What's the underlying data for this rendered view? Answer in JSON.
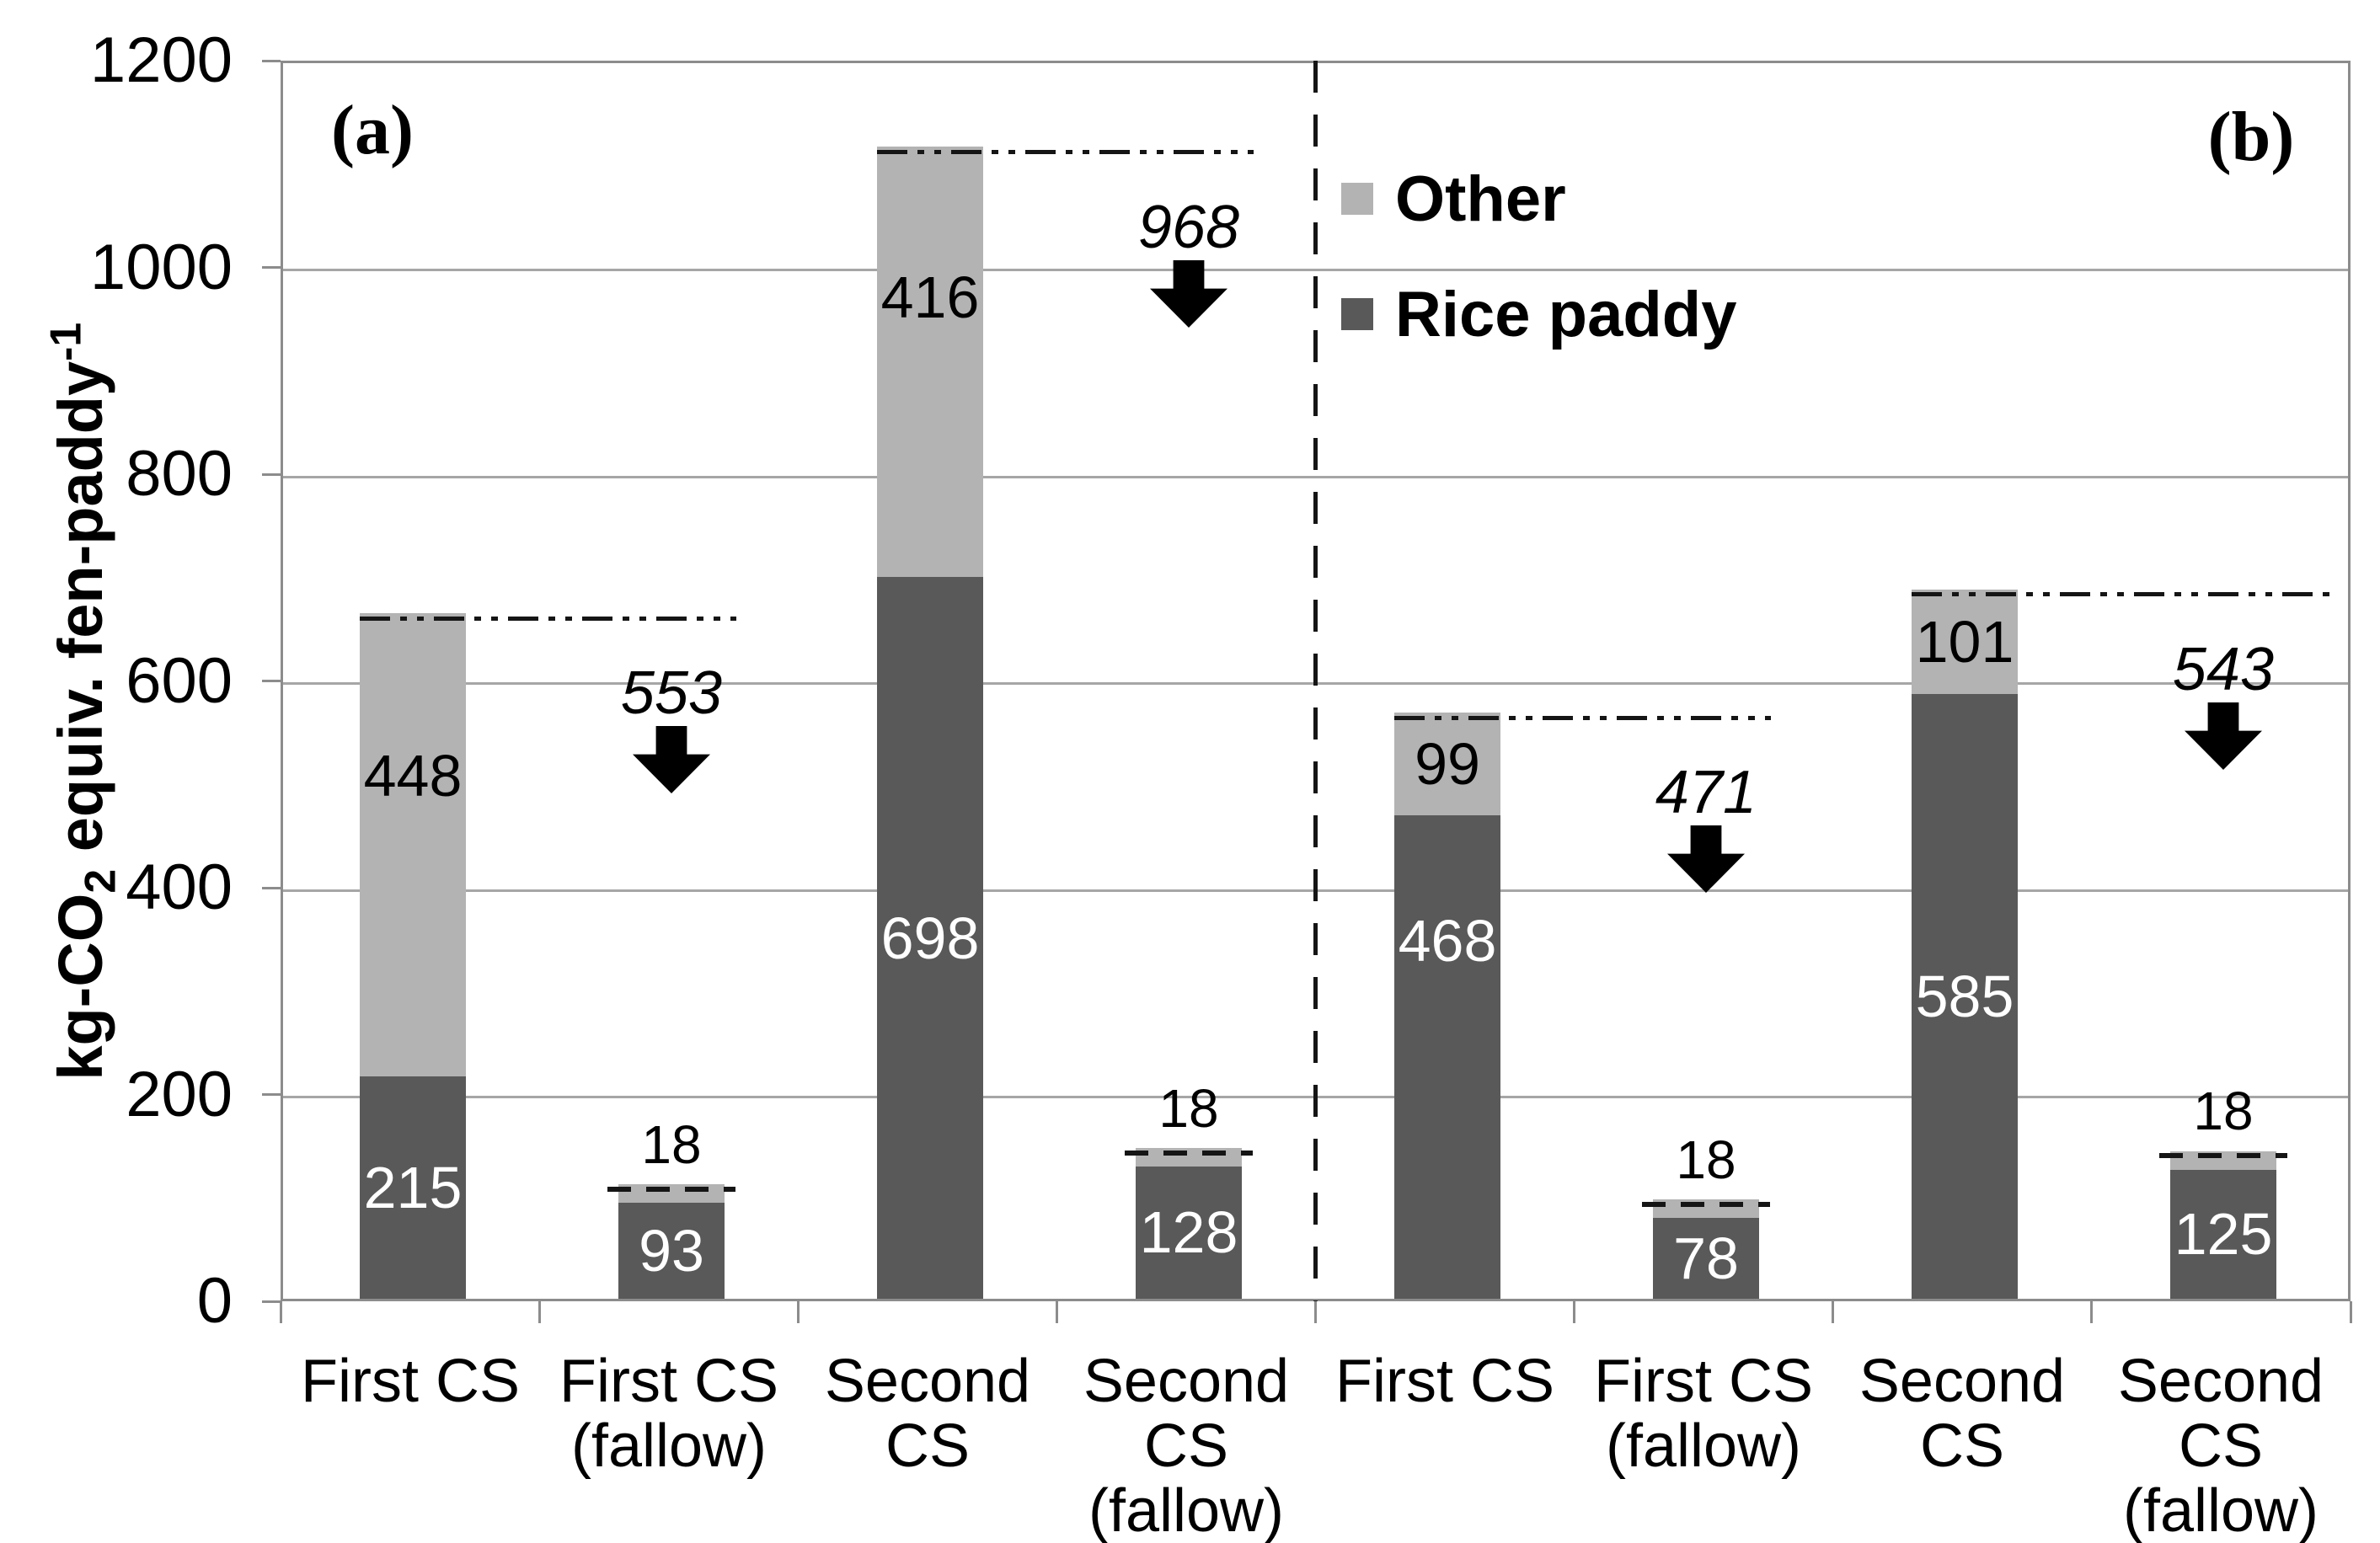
{
  "figure": {
    "y_axis_title": {
      "prefix": "kg-CO",
      "sub": "2",
      "mid": " equiv. fen-paddy",
      "sup": "-1"
    }
  },
  "chart_data": {
    "type": "bar",
    "stacked": true,
    "title": "",
    "ylabel": "kg-CO2 equiv. fen-paddy-1",
    "ylim": [
      0,
      1200
    ],
    "yticks": [
      0,
      200,
      400,
      600,
      800,
      1000,
      1200
    ],
    "grid": true,
    "legend_position": "top-center-right",
    "series": [
      {
        "name": "Rice paddy",
        "color": "#595959"
      },
      {
        "name": "Other",
        "color": "#b3b3b3"
      }
    ],
    "panels": [
      {
        "label": "(a)",
        "bars": [
          {
            "category": "First CS",
            "category_lines": [
              "First CS"
            ],
            "rice_paddy": 215,
            "other": 448,
            "rice_label": "215",
            "other_label": "448",
            "kind": "full"
          },
          {
            "category": "First CS (fallow)",
            "category_lines": [
              "First CS",
              "(fallow)"
            ],
            "rice_paddy": 93,
            "other": 18,
            "rice_label": "93",
            "top_label": "18",
            "kind": "fallow"
          },
          {
            "category": "Second CS",
            "category_lines": [
              "Second",
              "CS"
            ],
            "rice_paddy": 698,
            "other": 416,
            "rice_label": "698",
            "other_label": "416",
            "kind": "full"
          },
          {
            "category": "Second CS (fallow)",
            "category_lines": [
              "Second",
              "CS",
              "(fallow)"
            ],
            "rice_paddy": 128,
            "other": 18,
            "rice_label": "128",
            "top_label": "18",
            "kind": "fallow"
          }
        ],
        "reduction_annotations": [
          {
            "text": "553",
            "fallow_index": 1,
            "ref_index": 0
          },
          {
            "text": "968",
            "fallow_index": 3,
            "ref_index": 2
          }
        ]
      },
      {
        "label": "(b)",
        "bars": [
          {
            "category": "First CS",
            "category_lines": [
              "First CS"
            ],
            "rice_paddy": 468,
            "other": 99,
            "rice_label": "468",
            "other_label": "99",
            "kind": "full"
          },
          {
            "category": "First CS (fallow)",
            "category_lines": [
              "First CS",
              "(fallow)"
            ],
            "rice_paddy": 78,
            "other": 18,
            "rice_label": "78",
            "top_label": "18",
            "kind": "fallow"
          },
          {
            "category": "Second CS",
            "category_lines": [
              "Second",
              "CS"
            ],
            "rice_paddy": 585,
            "other": 101,
            "rice_label": "585",
            "other_label": "101",
            "kind": "full"
          },
          {
            "category": "Second CS (fallow)",
            "category_lines": [
              "Second",
              "CS",
              "(fallow)"
            ],
            "rice_paddy": 125,
            "other": 18,
            "rice_label": "125",
            "top_label": "18",
            "kind": "fallow"
          }
        ],
        "reduction_annotations": [
          {
            "text": "471",
            "fallow_index": 1,
            "ref_index": 0
          },
          {
            "text": "543",
            "fallow_index": 3,
            "ref_index": 2
          }
        ]
      }
    ]
  }
}
